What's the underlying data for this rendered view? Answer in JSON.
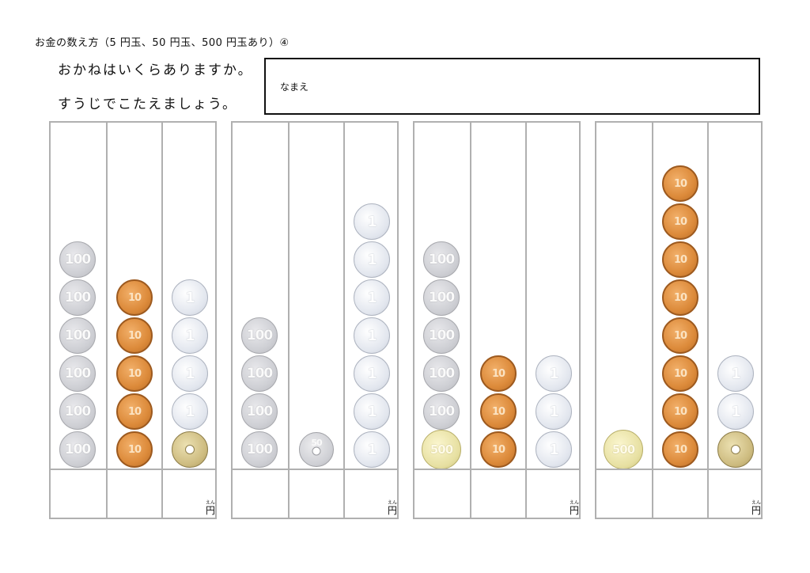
{
  "title": "お金の数え方（5 円玉、50 円玉、500 円玉あり）④",
  "instructions": {
    "line1": "おかねはいくらありますか。",
    "line2": "すうじでこたえましょう。"
  },
  "name_label": "なまえ",
  "unit": {
    "kanji": "円",
    "ruby": "えん"
  },
  "coin_labels": {
    "100": "100",
    "10": "10",
    "1": "1",
    "50": "50",
    "500": "500",
    "5": ""
  },
  "colors": {
    "grid": "#b0b0b0",
    "coin_100": "#cfd0d5",
    "coin_10": "#dc8a3a",
    "coin_1": "#e2e6ee",
    "coin_5": "#cdbb7f",
    "coin_50": "#cfd0d5",
    "coin_500": "#e7e0a2"
  },
  "problems": [
    {
      "columns": [
        {
          "coins": [
            100,
            100,
            100,
            100,
            100,
            100
          ]
        },
        {
          "coins": [
            10,
            10,
            10,
            10,
            10
          ]
        },
        {
          "coins": [
            5,
            1,
            1,
            1,
            1
          ]
        }
      ]
    },
    {
      "columns": [
        {
          "coins": [
            100,
            100,
            100,
            100
          ]
        },
        {
          "coins": [
            50
          ]
        },
        {
          "coins": [
            1,
            1,
            1,
            1,
            1,
            1,
            1
          ]
        }
      ]
    },
    {
      "columns": [
        {
          "coins": [
            500,
            100,
            100,
            100,
            100,
            100
          ]
        },
        {
          "coins": [
            10,
            10,
            10
          ]
        },
        {
          "coins": [
            1,
            1,
            1
          ]
        }
      ]
    },
    {
      "columns": [
        {
          "coins": [
            500
          ]
        },
        {
          "coins": [
            10,
            10,
            10,
            10,
            10,
            10,
            10,
            10
          ]
        },
        {
          "coins": [
            5,
            1,
            1
          ]
        }
      ]
    }
  ]
}
